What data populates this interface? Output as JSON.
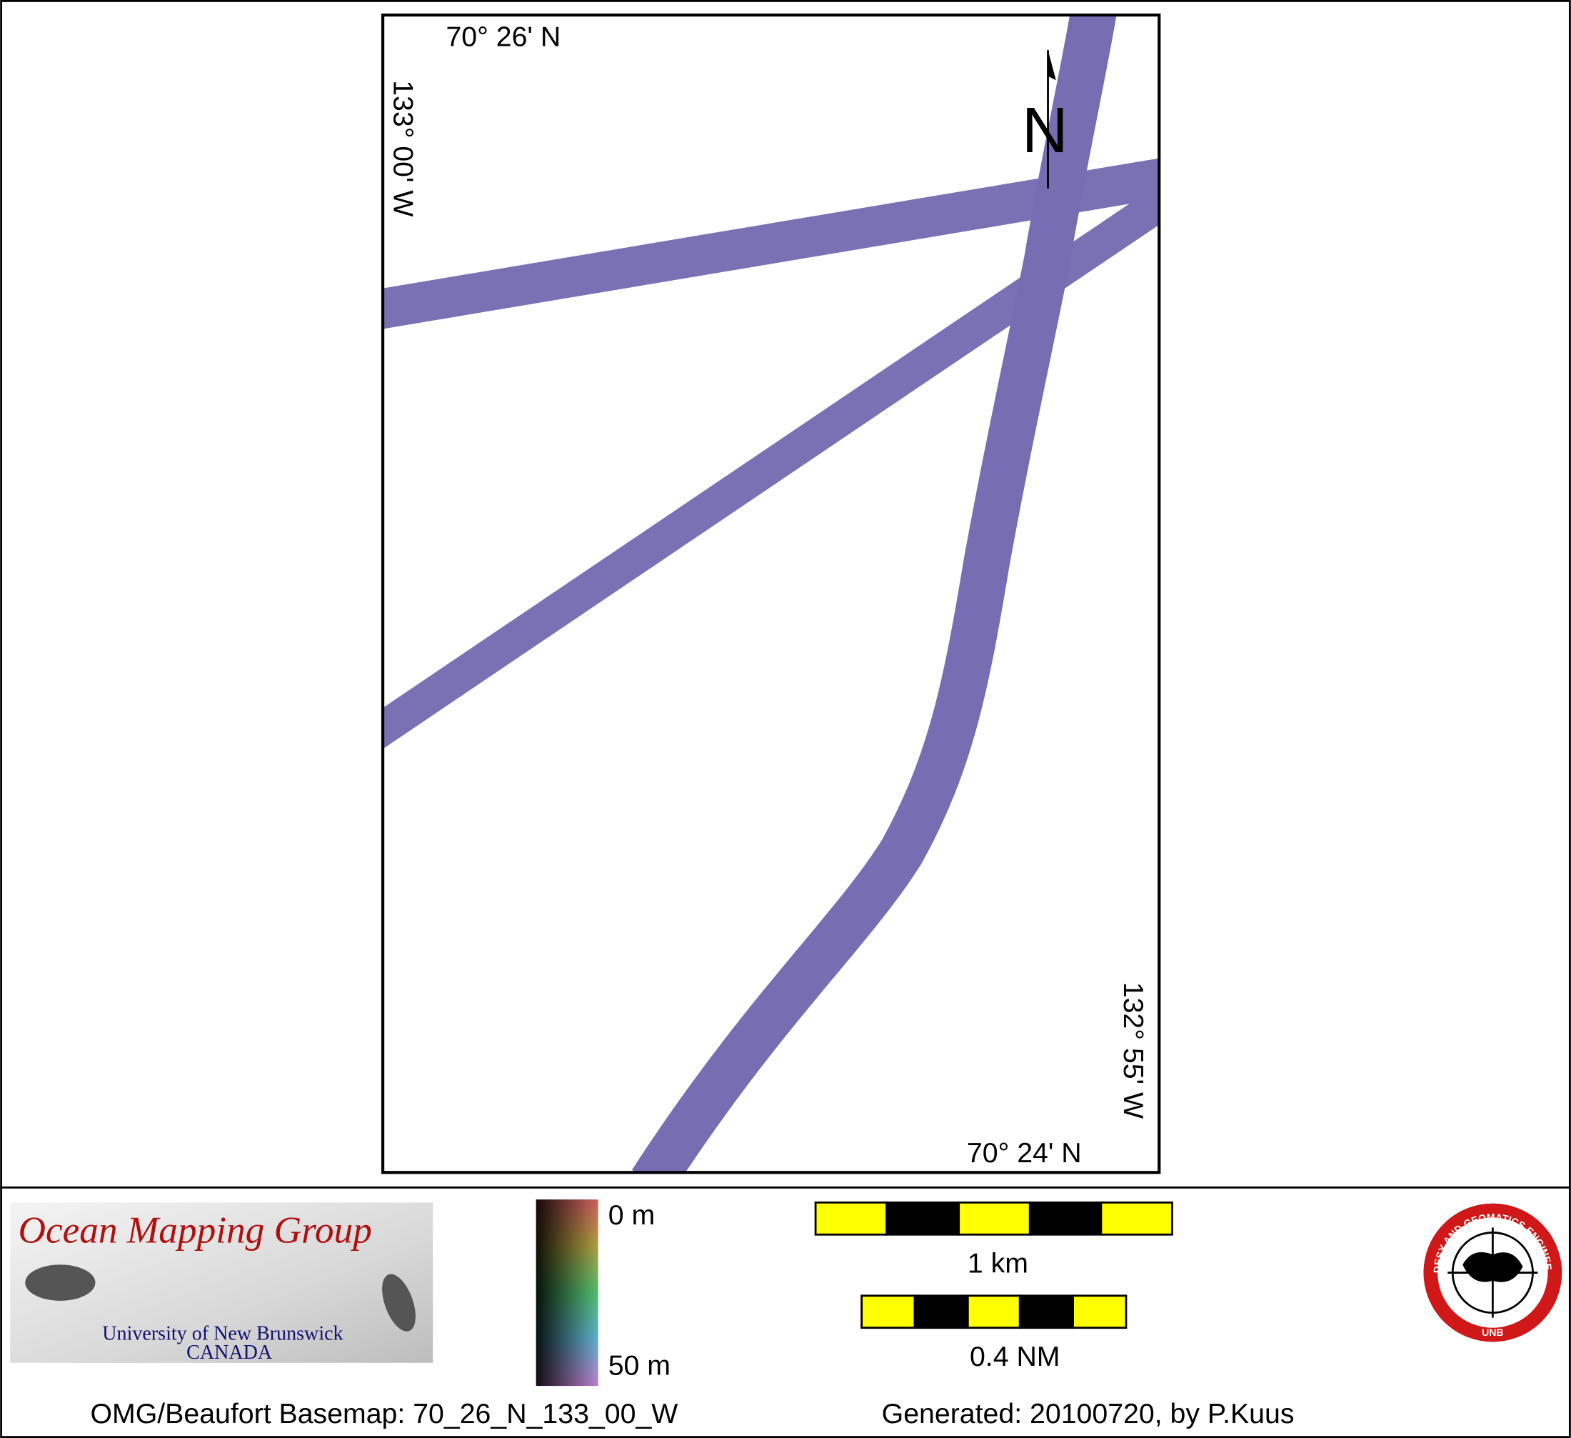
{
  "map": {
    "lat_top": "70° 26' N",
    "lon_left": "133° 00' W",
    "north": "N",
    "lon_right": "132° 55' W",
    "lat_bottom": "70° 24' N"
  },
  "logo": {
    "title": "Ocean Mapping Group",
    "university": "University of New Brunswick",
    "country": "CANADA"
  },
  "colorbar": {
    "top_label": "0 m",
    "bottom_label": "50 m"
  },
  "scale_bars": {
    "km_label": "1 km",
    "nm_label": "0.4 NM"
  },
  "unb_logo": {
    "ring_text": "GEODESY AND GEOMATICS ENGINEERING",
    "bottom_text": "UNB"
  },
  "footer": {
    "basemap": "OMG/Beaufort Basemap: 70_26_N_133_00_W",
    "generated": "Generated: 20100720, by P.Kuus"
  }
}
